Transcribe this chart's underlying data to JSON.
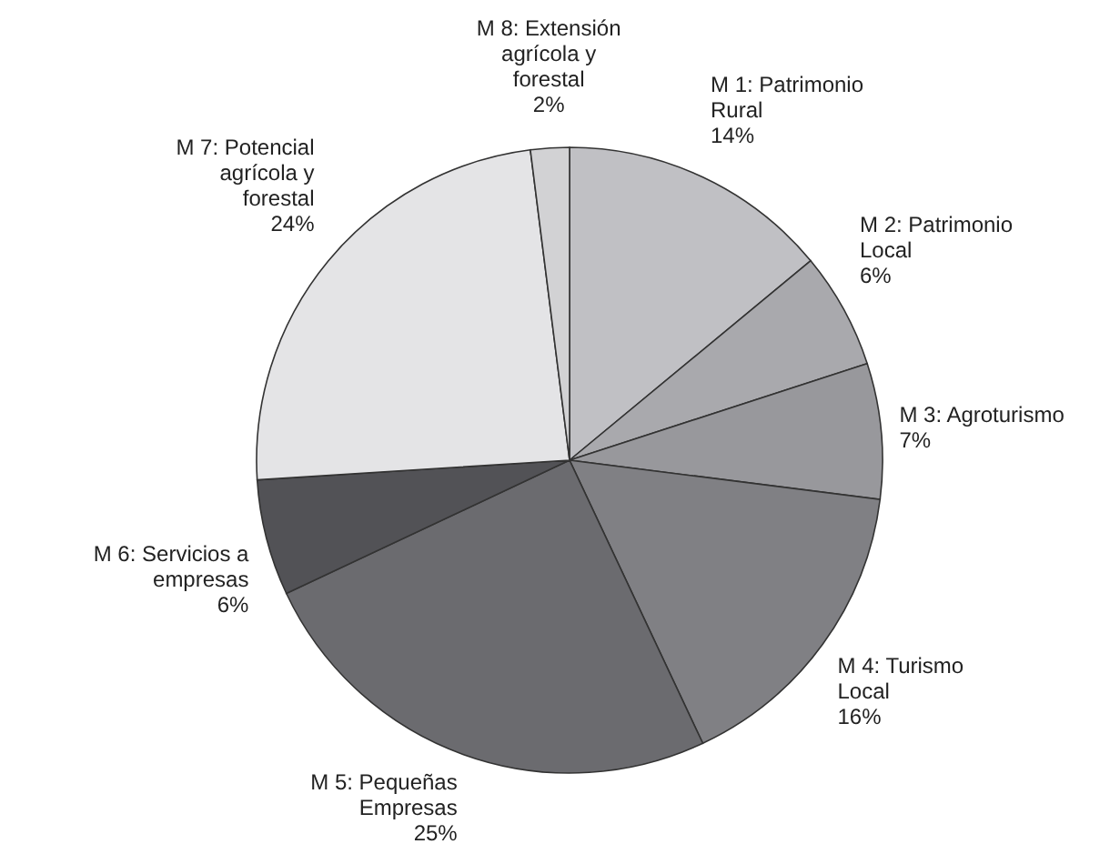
{
  "chart_data": {
    "type": "pie",
    "categories": [
      "M 1: Patrimonio Rural",
      "M 2: Patrimonio Local",
      "M 3: Agroturismo",
      "M 4: Turismo Local",
      "M 5: Pequeñas Empresas",
      "M 6: Servicios a empresas",
      "M 7: Potencial agrícola y forestal",
      "M 8: Extensión agrícola y forestal"
    ],
    "values": [
      14,
      6,
      7,
      16,
      25,
      6,
      24,
      2
    ],
    "colors": [
      "#c0c0c4",
      "#a9a9ad",
      "#98989c",
      "#808084",
      "#6b6b6f",
      "#525256",
      "#e4e4e6",
      "#d2d2d4"
    ],
    "value_labels": [
      "14%",
      "6%",
      "7%",
      "16%",
      "25%",
      "6%",
      "24%",
      "2%"
    ]
  }
}
